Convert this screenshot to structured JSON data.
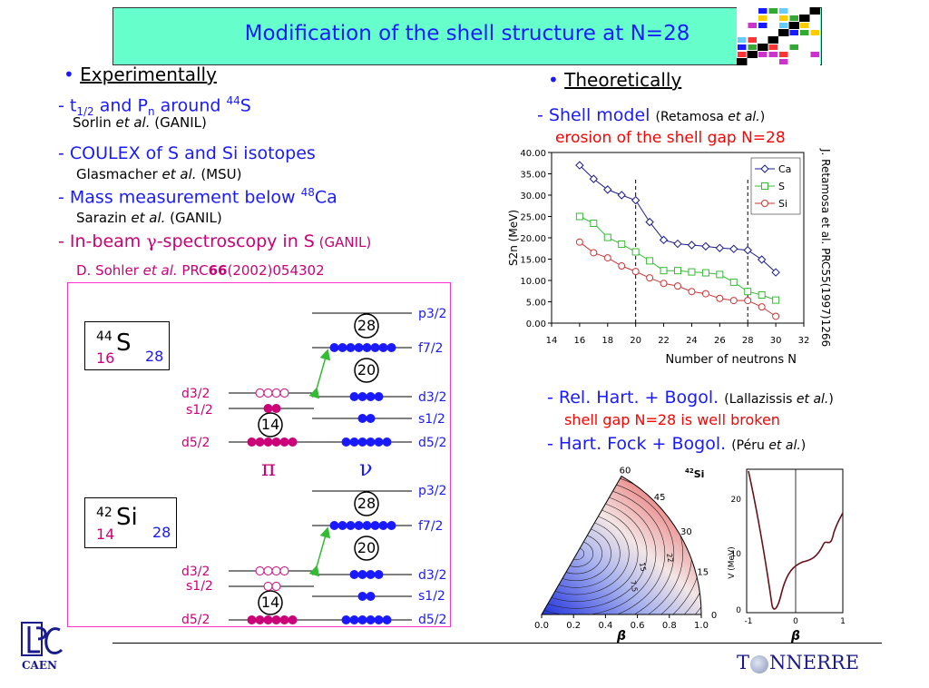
{
  "title": "Modification of the shell structure at N=28",
  "experimental": {
    "header": "Experimentally",
    "items": [
      {
        "dash": "- ",
        "text_a": "t",
        "sub_a": "1/2",
        "text_b": " and P",
        "sub_b": "n",
        "text_c": " around ",
        "sup": "44",
        "text_d": "S",
        "ref_author": "Sorlin",
        "ref_etal": " et al.",
        "ref_lab": " (GANIL)"
      },
      {
        "text": "- COULEX of S and Si isotopes",
        "ref_author": "Glasmacher",
        "ref_etal": " et al.",
        "ref_lab": " (MSU)"
      },
      {
        "text": "- Mass measurement below ",
        "sup": "48",
        "tail": "Ca",
        "ref_author": "Sarazin",
        "ref_etal": " et al.",
        "ref_lab": " (GANIL)"
      },
      {
        "text_a": "- In-beam ",
        "gamma": "γ",
        "text_b": "-spectroscopy in S",
        "lab": " (GANIL)"
      }
    ],
    "sohler": {
      "author": "D. Sohler ",
      "etal": "et al.",
      "journal": "  PRC",
      "vol": "66",
      "rest": "(2002)054302"
    }
  },
  "theoretical": {
    "header": "Theoretically",
    "shell_model": {
      "label": "- Shell model ",
      "ref": "(Retamosa ",
      "etal": "et al.",
      "close": ")",
      "note": "erosion of the shell gap N=28"
    },
    "rel_hart": {
      "label": "- Rel.  Hart. + Bogol. ",
      "ref": "(Lallazissis ",
      "etal": "et al.",
      "close": ")",
      "note": "shell gap N=28 is well broken"
    },
    "hart_fock": {
      "label": "- Hart. Fock + Bogol. ",
      "ref": "(Péru ",
      "etal": "et al.",
      "close": ")"
    },
    "side_ref": "J. Retamosa et al. PRC55(1997)1266"
  },
  "nuclei": [
    {
      "mass": "44",
      "symbol": "S",
      "z": "16",
      "n": "28"
    },
    {
      "mass": "42",
      "symbol": "Si",
      "z": "14",
      "n": "28"
    }
  ],
  "levels": {
    "proton": {
      "d32": "d3/2",
      "s12": "s1/2",
      "d52": "d5/2"
    },
    "neutron": {
      "p32": "p3/2",
      "f72": "f7/2",
      "d32": "d3/2",
      "s12": "s1/2",
      "d52": "d5/2"
    },
    "magic": {
      "m28": "28",
      "m20": "20",
      "m14": "14"
    },
    "pi": "π",
    "nu": "ν"
  },
  "chart_data": {
    "type": "line",
    "xlabel": "Number of neutrons N",
    "ylabel": "S2n (MeV)",
    "xlim": [
      14,
      32
    ],
    "ylim": [
      0,
      40
    ],
    "xticks": [
      14,
      16,
      18,
      20,
      22,
      24,
      26,
      28,
      30,
      32
    ],
    "yticks": [
      0,
      5,
      10,
      15,
      20,
      25,
      30,
      35,
      40
    ],
    "ytick_labels": [
      "0.00",
      "5.00",
      "10.00",
      "15.00",
      "20.00",
      "25.00",
      "30.00",
      "35.00",
      "40.00"
    ],
    "dashed_lines_x": [
      20,
      28
    ],
    "legend": "top-right",
    "series": [
      {
        "name": "Ca",
        "color": "#1a1a8c",
        "marker": "diamond",
        "x": [
          16,
          17,
          18,
          19,
          20,
          21,
          22,
          23,
          24,
          25,
          26,
          27,
          28,
          29,
          30
        ],
        "y": [
          37,
          33.8,
          31.3,
          30,
          28.8,
          23.7,
          19.5,
          18.6,
          18.3,
          18,
          17.6,
          17.4,
          17.1,
          14.9,
          11.9
        ]
      },
      {
        "name": "S",
        "color": "#33bb33",
        "marker": "square",
        "x": [
          16,
          17,
          18,
          19,
          20,
          21,
          22,
          23,
          24,
          25,
          26,
          27,
          28,
          29,
          30
        ],
        "y": [
          25,
          23.4,
          20.1,
          18.5,
          16.7,
          14.6,
          12.3,
          12.3,
          12,
          11.8,
          11.4,
          9.6,
          7.4,
          6.6,
          5.4
        ]
      },
      {
        "name": "Si",
        "color": "#cc3333",
        "marker": "circle",
        "x": [
          16,
          17,
          18,
          19,
          20,
          21,
          22,
          23,
          24,
          25,
          26,
          27,
          28,
          29,
          30
        ],
        "y": [
          19,
          16.5,
          15.3,
          13.4,
          12.1,
          10.6,
          9.3,
          8.7,
          7.4,
          6.9,
          5.8,
          5.3,
          5.3,
          3.8,
          1.6
        ]
      }
    ]
  },
  "pes_plot": {
    "nucleus_mass": "42",
    "nucleus_symbol": "Si",
    "beta_label": "β",
    "beta_ticks": [
      "0.0",
      "0.2",
      "0.4",
      "0.6",
      "0.8",
      "1.0"
    ],
    "gamma_ticks": [
      "0",
      "15",
      "30",
      "45",
      "60"
    ],
    "contour_labels": [
      "22",
      "15",
      "7.5"
    ]
  },
  "energy_plot": {
    "ylabel": "V (MeV)",
    "xlabel": "β",
    "yticks": [
      "0",
      "10",
      "20"
    ],
    "xticks": [
      "-1",
      "0",
      "1"
    ]
  },
  "footer": {
    "logo_caen": "CAEN",
    "tonnerre_a": "T",
    "tonnerre_b": "NNERRE"
  }
}
